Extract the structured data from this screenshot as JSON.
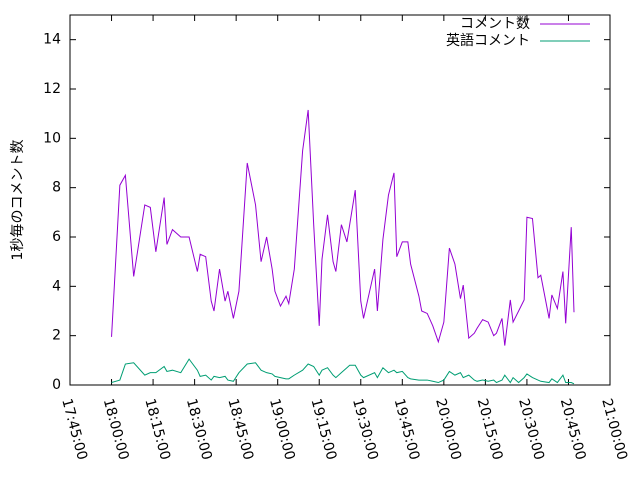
{
  "chart_data": {
    "type": "line",
    "ylabel": "1秒毎のコメント数",
    "x": [
      "18:00:00",
      "18:03:00",
      "18:05:00",
      "18:08:00",
      "18:12:00",
      "18:14:00",
      "18:16:00",
      "18:19:00",
      "18:20:00",
      "18:22:00",
      "18:25:00",
      "18:28:00",
      "18:31:00",
      "18:32:00",
      "18:34:00",
      "18:36:00",
      "18:37:00",
      "18:39:00",
      "18:41:00",
      "18:42:00",
      "18:44:00",
      "18:46:00",
      "18:49:00",
      "18:52:00",
      "18:54:00",
      "18:56:00",
      "18:58:00",
      "18:59:00",
      "19:01:00",
      "19:03:00",
      "19:04:00",
      "19:06:00",
      "19:09:00",
      "19:11:00",
      "19:13:00",
      "19:15:00",
      "19:16:00",
      "19:18:00",
      "19:20:00",
      "19:21:00",
      "19:23:00",
      "19:25:00",
      "19:26:00",
      "19:28:00",
      "19:30:00",
      "19:31:00",
      "19:35:00",
      "19:36:00",
      "19:38:00",
      "19:40:00",
      "19:42:00",
      "19:43:00",
      "19:45:00",
      "19:47:00",
      "19:48:00",
      "19:51:00",
      "19:52:00",
      "19:54:00",
      "19:56:00",
      "19:58:00",
      "20:00:00",
      "20:02:00",
      "20:04:00",
      "20:06:00",
      "20:07:00",
      "20:09:00",
      "20:11:00",
      "20:12:00",
      "20:14:00",
      "20:16:00",
      "20:18:00",
      "20:19:00",
      "20:21:00",
      "20:22:00",
      "20:24:00",
      "20:25:00",
      "20:27:00",
      "20:29:00",
      "20:30:00",
      "20:32:00",
      "20:34:00",
      "20:35:00",
      "20:38:00",
      "20:39:00",
      "20:41:00",
      "20:43:00",
      "20:44:00",
      "20:46:00",
      "20:47:00"
    ],
    "series": [
      {
        "name": "コメント数",
        "color": "#9400d3",
        "values": [
          1.95,
          8.1,
          8.5,
          4.4,
          7.3,
          7.2,
          5.4,
          7.6,
          5.7,
          6.3,
          6.0,
          6.0,
          4.6,
          5.3,
          5.2,
          3.4,
          3.0,
          4.7,
          3.4,
          3.8,
          2.7,
          3.8,
          9.0,
          7.3,
          5.0,
          6.0,
          4.7,
          3.8,
          3.2,
          3.6,
          3.3,
          4.7,
          9.5,
          11.15,
          6.5,
          2.4,
          5.1,
          6.9,
          5.0,
          4.6,
          6.5,
          5.8,
          6.5,
          7.9,
          3.4,
          2.7,
          4.7,
          3.0,
          5.9,
          7.7,
          8.6,
          5.2,
          5.8,
          5.8,
          4.9,
          3.6,
          3.0,
          2.9,
          2.4,
          1.75,
          2.55,
          5.55,
          4.9,
          3.5,
          4.05,
          1.9,
          2.1,
          2.3,
          2.65,
          2.55,
          2.0,
          2.1,
          2.7,
          1.6,
          3.45,
          2.55,
          3.0,
          3.45,
          6.8,
          6.75,
          4.35,
          4.45,
          2.7,
          3.65,
          3.1,
          4.6,
          2.5,
          6.4,
          2.95
        ]
      },
      {
        "name": "英語コメント",
        "color": "#009e73",
        "values": [
          0.1,
          0.2,
          0.85,
          0.9,
          0.4,
          0.5,
          0.5,
          0.75,
          0.55,
          0.6,
          0.5,
          1.05,
          0.6,
          0.35,
          0.4,
          0.2,
          0.35,
          0.3,
          0.35,
          0.2,
          0.15,
          0.5,
          0.85,
          0.9,
          0.6,
          0.5,
          0.45,
          0.35,
          0.3,
          0.25,
          0.25,
          0.4,
          0.6,
          0.85,
          0.75,
          0.4,
          0.6,
          0.7,
          0.4,
          0.3,
          0.5,
          0.7,
          0.8,
          0.8,
          0.4,
          0.3,
          0.5,
          0.3,
          0.7,
          0.5,
          0.6,
          0.5,
          0.55,
          0.3,
          0.25,
          0.2,
          0.2,
          0.2,
          0.15,
          0.1,
          0.2,
          0.55,
          0.4,
          0.5,
          0.3,
          0.4,
          0.2,
          0.15,
          0.2,
          0.15,
          0.2,
          0.1,
          0.2,
          0.4,
          0.1,
          0.3,
          0.1,
          0.3,
          0.45,
          0.3,
          0.2,
          0.15,
          0.1,
          0.25,
          0.1,
          0.4,
          0.1,
          0.1,
          0.05
        ]
      }
    ],
    "xlim": [
      "17:45:00",
      "21:00:00"
    ],
    "xticks": [
      "17:45:00",
      "18:00:00",
      "18:15:00",
      "18:30:00",
      "18:45:00",
      "19:00:00",
      "19:15:00",
      "19:30:00",
      "19:45:00",
      "20:00:00",
      "20:15:00",
      "20:30:00",
      "20:45:00",
      "21:00:00"
    ],
    "ylim": [
      0,
      15
    ],
    "yticks": [
      0,
      2,
      4,
      6,
      8,
      10,
      12,
      14
    ],
    "legend": "top-right"
  }
}
